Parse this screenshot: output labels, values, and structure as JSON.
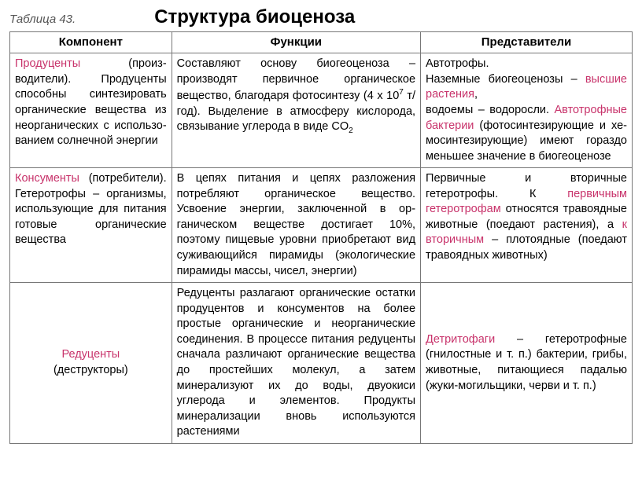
{
  "header": {
    "table_label": "Таблица 43.",
    "title": "Структура биоценоза"
  },
  "columns": {
    "c1": "Компонент",
    "c2": "Функции",
    "c3": "Представители"
  },
  "rows": {
    "r1": {
      "comp_hl": "Продуценты",
      "comp_rest": " (произ­водители). Продуцен­ты способны синтези­ровать органические вещества из неорга­нических с использо­ванием солнечной энергии",
      "func_a": "Составляют основу биогеоценоза – производят первичное органическое вещество, благодаря фотосинтезу (4 х 10",
      "func_sup": "7",
      "func_b": " т/год). Выделение в атмосферу ки­слорода, связывание углерода в виде CO",
      "func_sub": "2",
      "rep_a": "Автотрофы.\nНаземные биогеоценозы – ",
      "rep_hl1": "высшие растения",
      "rep_b": ",\nводоемы – водоросли. ",
      "rep_hl2": "Ав­тотрофные бактерии",
      "rep_c": " (фо­тосинтезирующие и хе­мосинтезирующие) имеют гораздо меньшее значе­ние в биогеоценозе"
    },
    "r2": {
      "comp_hl": "Консументы",
      "comp_rest": " (потреби­тели). Гетеротрофы – организмы, исполь­зующие для питания готовые органические вещества",
      "func": "В цепях питания и цепях разложения потребляют органическое вещество. Усвоение энергии, заключенной в ор­ганическом веществе достигает 10%, поэтому пищевые уровни приобретают вид суживающийся пирамиды (эколо­гические пирамиды массы, чисел, энергии)",
      "rep_a": "Первичные и вторичные гетеротрофы. К ",
      "rep_hl1": "первич­ным гетеротрофам",
      "rep_b": " отно­сятся травоядные живот­ные (поедают растения), а ",
      "rep_hl2": "к вторичным",
      "rep_c": " – плотояд­ные (поедают травоядных животных)"
    },
    "r3": {
      "comp_hl": "Редуценты",
      "comp_rest": "(деструкторы)",
      "func": "Редуценты разлагают органические остатки продуцентов и консументов на более простые органические и неорга­нические соединения. В процессе пи­тания редуценты сначала различают органические вещества до простейших молекул, а затем минерализуют их до воды, двуокиси углерода и элементов. Продукты минерализации вновь ис­пользуются растениями",
      "rep_hl": "Детритофаги",
      "rep_rest": " – гетеротроф­ные (гнилостные и т. п.) бактерии, грибы, живот­ные, питающиеся пада­лью (жуки-могильщики, черви и т. п.)"
    }
  },
  "style": {
    "highlight_color": "#c8336b",
    "border_color": "#777777",
    "text_color": "#000000",
    "background": "#ffffff",
    "base_fontsize": 14.5,
    "title_fontsize": 24
  }
}
